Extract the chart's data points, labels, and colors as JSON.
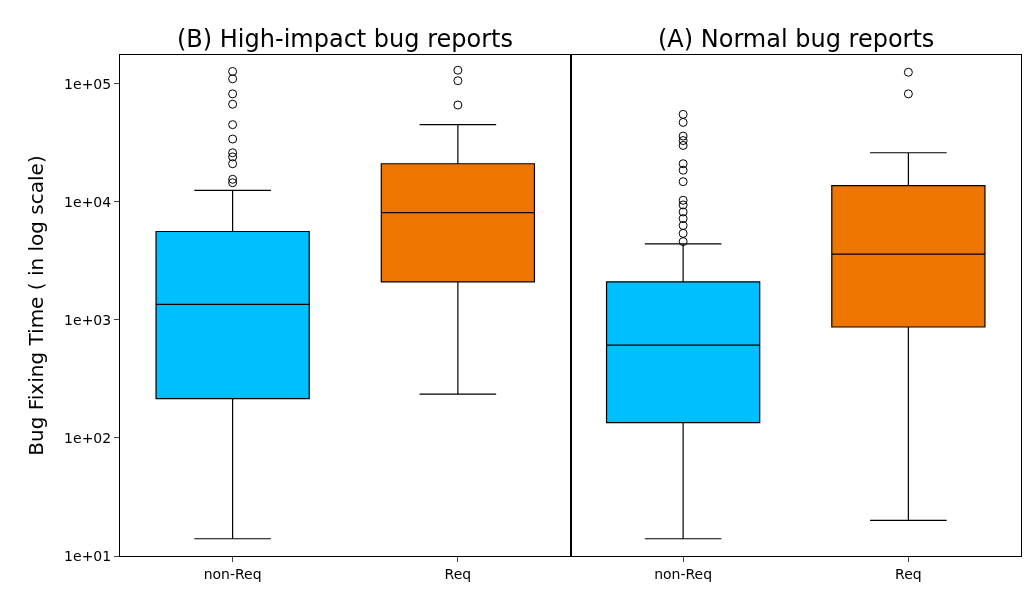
{
  "chart_data": [
    {
      "type": "box",
      "title": "(B) High-impact bug reports",
      "ylabel": "Bug Fixing Time ( in log scale)",
      "categories": [
        "non-Req",
        "Req"
      ],
      "colors": [
        "#00bfff",
        "#ee7600"
      ],
      "log": true,
      "marker": "circle",
      "ylim": [
        10,
        175000
      ],
      "yticks": [
        {
          "value": 10,
          "label": "1e+01"
        },
        {
          "value": 100,
          "label": "1e+02"
        },
        {
          "value": 1000,
          "label": "1e+03"
        },
        {
          "value": 10000,
          "label": "1e+04"
        },
        {
          "value": 100000,
          "label": "1e+05"
        }
      ],
      "boxes": [
        {
          "low": 14,
          "q1": 215,
          "median": 1350,
          "q3": 5600,
          "high": 12500,
          "outliers": [
            14500,
            15500,
            21000,
            24000,
            26000,
            34000,
            45000,
            67000,
            82000,
            110000,
            127000
          ]
        },
        {
          "low": 235,
          "q1": 2100,
          "median": 8100,
          "q3": 21000,
          "high": 45000,
          "outliers": [
            66000,
            106000,
            130000
          ]
        }
      ]
    },
    {
      "type": "box",
      "title": "(A) Normal bug reports",
      "categories": [
        "non-Req",
        "Req"
      ],
      "colors": [
        "#00bfff",
        "#ee7600"
      ],
      "log": true,
      "marker": "circle",
      "tick_labels": "x",
      "ylim": [
        10,
        175000
      ],
      "boxes": [
        {
          "low": 14,
          "q1": 135,
          "median": 610,
          "q3": 2100,
          "high": 4400,
          "outliers": [
            4600,
            5400,
            6300,
            7200,
            8200,
            9400,
            10300,
            14800,
            18500,
            21000,
            30000,
            33000,
            36000,
            47000,
            55000
          ]
        },
        {
          "low": 20,
          "q1": 870,
          "median": 3600,
          "q3": 13700,
          "high": 26000,
          "outliers": [
            82000,
            125000
          ]
        }
      ]
    }
  ]
}
